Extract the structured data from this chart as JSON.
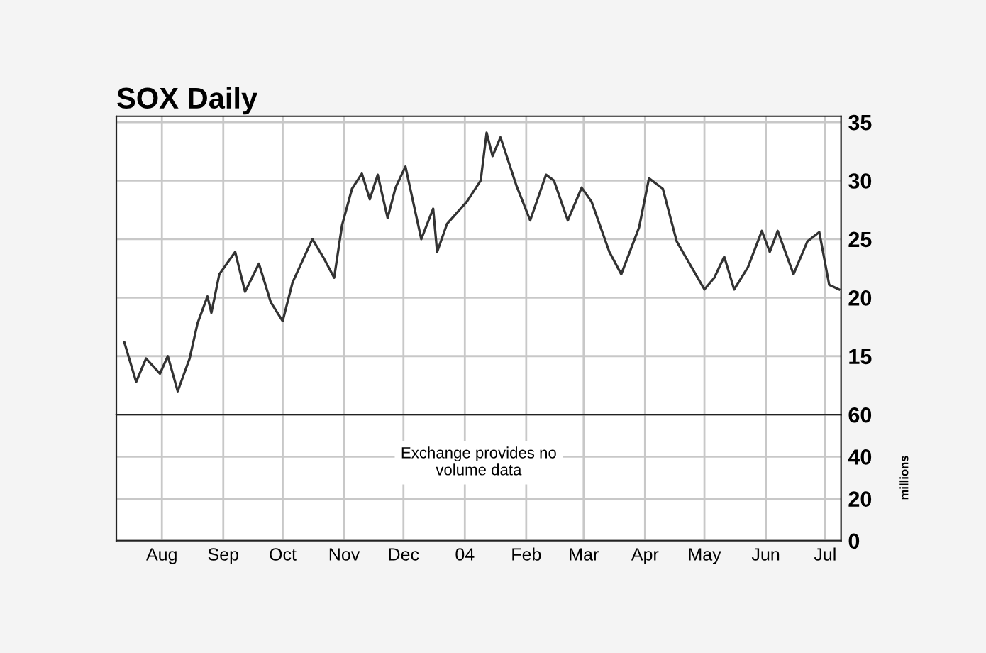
{
  "chart_data": [
    {
      "type": "line",
      "title": "SOX Daily",
      "tick_labels": "y",
      "grid": true,
      "marker": "none",
      "line_style": "solid",
      "xlim": [
        "2003-07-09",
        "2004-07-09"
      ],
      "xticks": [
        {
          "value": "2003-08-01",
          "label": null
        },
        {
          "value": "2003-09-01",
          "label": null
        },
        {
          "value": "2003-10-01",
          "label": null
        },
        {
          "value": "2003-11-01",
          "label": null
        },
        {
          "value": "2003-12-01",
          "label": null
        },
        {
          "value": "2004-01-01",
          "label": null
        },
        {
          "value": "2004-02-01",
          "label": null
        },
        {
          "value": "2004-03-01",
          "label": null
        },
        {
          "value": "2004-04-01",
          "label": null
        },
        {
          "value": "2004-05-01",
          "label": null
        },
        {
          "value": "2004-06-01",
          "label": null
        },
        {
          "value": "2004-07-01",
          "label": null
        }
      ],
      "ylim": [
        10,
        35.5
      ],
      "yticks": [
        15,
        20,
        25,
        30,
        35
      ],
      "x": [
        "2003-07-13",
        "2003-07-19",
        "2003-07-24",
        "2003-07-31",
        "2003-08-04",
        "2003-08-09",
        "2003-08-15",
        "2003-08-19",
        "2003-08-24",
        "2003-08-26",
        "2003-08-30",
        "2003-09-07",
        "2003-09-12",
        "2003-09-19",
        "2003-09-25",
        "2003-10-01",
        "2003-10-06",
        "2003-10-16",
        "2003-10-22",
        "2003-10-27",
        "2003-10-31",
        "2003-11-05",
        "2003-11-10",
        "2003-11-14",
        "2003-11-18",
        "2003-11-23",
        "2003-11-27",
        "2003-12-02",
        "2003-12-10",
        "2003-12-16",
        "2003-12-18",
        "2003-12-23",
        "2004-01-02",
        "2004-01-09",
        "2004-01-12",
        "2004-01-15",
        "2004-01-19",
        "2004-01-27",
        "2004-02-03",
        "2004-02-11",
        "2004-02-15",
        "2004-02-22",
        "2004-02-29",
        "2004-03-05",
        "2004-03-14",
        "2004-03-20",
        "2004-03-29",
        "2004-04-03",
        "2004-04-10",
        "2004-04-17",
        "2004-05-01",
        "2004-05-06",
        "2004-05-11",
        "2004-05-16",
        "2004-05-23",
        "2004-05-30",
        "2004-06-03",
        "2004-06-07",
        "2004-06-15",
        "2004-06-22",
        "2004-06-28",
        "2004-07-03",
        "2004-07-08"
      ],
      "series": [
        {
          "color": "#333333",
          "values": [
            16.2,
            12.8,
            14.8,
            13.5,
            15,
            12,
            14.8,
            17.8,
            20.1,
            18.7,
            22,
            23.9,
            20.5,
            22.9,
            19.6,
            18,
            21.3,
            25,
            23.3,
            21.7,
            26.2,
            29.3,
            30.6,
            28.4,
            30.5,
            26.8,
            29.4,
            31.2,
            25,
            27.6,
            23.9,
            26.3,
            28.2,
            30,
            34.1,
            32.1,
            33.7,
            29.6,
            26.6,
            30.5,
            30,
            26.6,
            29.4,
            28.2,
            23.9,
            22,
            26,
            30.2,
            29.3,
            24.8,
            20.7,
            21.7,
            23.5,
            20.7,
            22.6,
            25.7,
            23.9,
            25.7,
            22,
            24.8,
            25.6,
            21.1,
            20.7
          ]
        }
      ]
    },
    {
      "type": "bar",
      "grid": true,
      "ylabel": "millions",
      "xlim": [
        "2003-07-09",
        "2004-07-09"
      ],
      "xticks": [
        {
          "value": "2003-08-01",
          "label": "Aug"
        },
        {
          "value": "2003-09-01",
          "label": "Sep"
        },
        {
          "value": "2003-10-01",
          "label": "Oct"
        },
        {
          "value": "2003-11-01",
          "label": "Nov"
        },
        {
          "value": "2003-12-01",
          "label": "Dec"
        },
        {
          "value": "2004-01-01",
          "label": "04"
        },
        {
          "value": "2004-02-01",
          "label": "Feb"
        },
        {
          "value": "2004-03-01",
          "label": "Mar"
        },
        {
          "value": "2004-04-01",
          "label": "Apr"
        },
        {
          "value": "2004-05-01",
          "label": "May"
        },
        {
          "value": "2004-06-01",
          "label": "Jun"
        },
        {
          "value": "2004-07-01",
          "label": "Jul"
        }
      ],
      "ylim": [
        0,
        60
      ],
      "yticks": [
        0,
        20,
        40,
        60
      ],
      "annotations": [
        "Exchange provides no\nvolume data"
      ]
    }
  ]
}
